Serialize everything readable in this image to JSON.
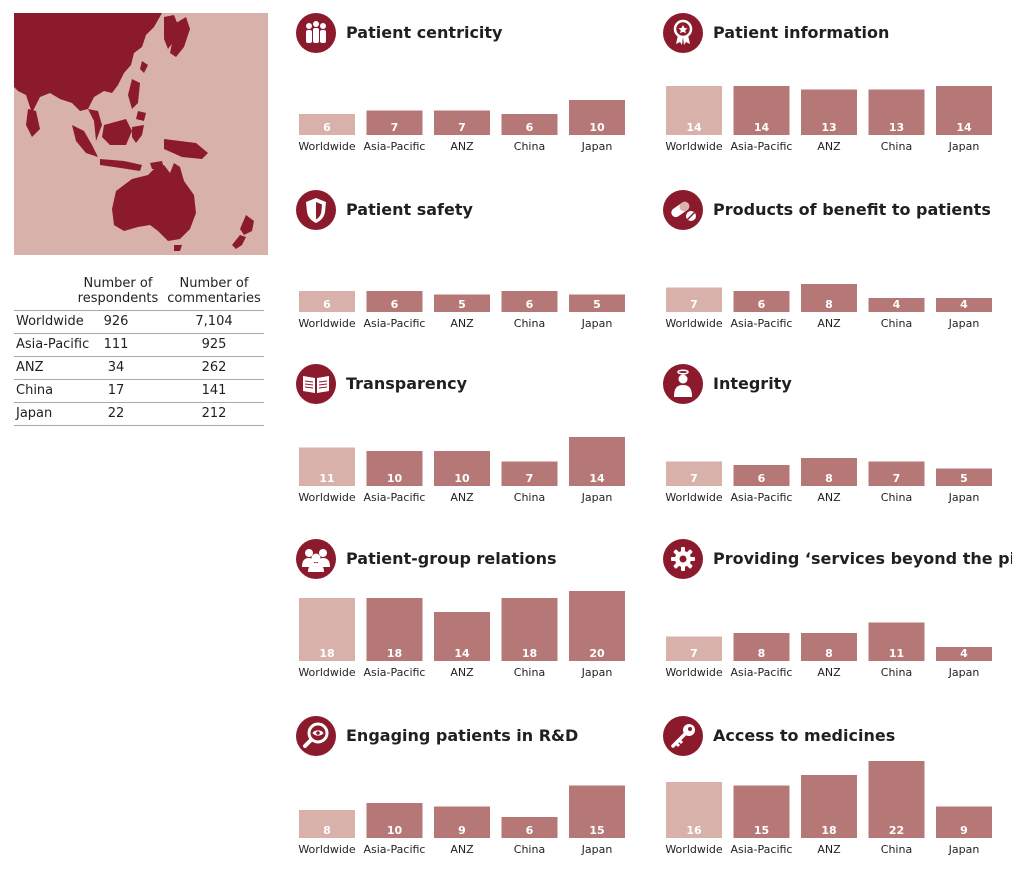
{
  "colors": {
    "worldwide": "#d8b1ab",
    "region": "#b57876",
    "accent": "#8b1a2c",
    "map_land": "#8b1a2c",
    "map_sea": "#d8b1ab"
  },
  "table": {
    "headers": [
      "Number of respondents",
      "Number of commentaries"
    ],
    "rows": [
      {
        "name": "Worldwide",
        "respondents": "926",
        "commentaries": "7,104"
      },
      {
        "name": "Asia-Pacific",
        "respondents": "111",
        "commentaries": "925"
      },
      {
        "name": "ANZ",
        "respondents": "34",
        "commentaries": "262"
      },
      {
        "name": "China",
        "respondents": "17",
        "commentaries": "141"
      },
      {
        "name": "Japan",
        "respondents": "22",
        "commentaries": "212"
      }
    ]
  },
  "chart_data": [
    {
      "type": "bar",
      "title": "Patient centricity",
      "icon": "people-group-icon",
      "categories": [
        "Worldwide",
        "Asia-Pacific",
        "ANZ",
        "China",
        "Japan"
      ],
      "values": [
        6,
        7,
        7,
        6,
        10
      ]
    },
    {
      "type": "bar",
      "title": "Patient information",
      "icon": "award-badge-icon",
      "categories": [
        "Worldwide",
        "Asia-Pacific",
        "ANZ",
        "China",
        "Japan"
      ],
      "values": [
        14,
        14,
        13,
        13,
        14
      ]
    },
    {
      "type": "bar",
      "title": "Patient safety",
      "icon": "shield-icon",
      "categories": [
        "Worldwide",
        "Asia-Pacific",
        "ANZ",
        "China",
        "Japan"
      ],
      "values": [
        6,
        6,
        5,
        6,
        5
      ]
    },
    {
      "type": "bar",
      "title": "Products of benefit to patients",
      "icon": "pills-icon",
      "categories": [
        "Worldwide",
        "Asia-Pacific",
        "ANZ",
        "China",
        "Japan"
      ],
      "values": [
        7,
        6,
        8,
        4,
        4
      ]
    },
    {
      "type": "bar",
      "title": "Transparency",
      "icon": "open-book-icon",
      "categories": [
        "Worldwide",
        "Asia-Pacific",
        "ANZ",
        "China",
        "Japan"
      ],
      "values": [
        11,
        10,
        10,
        7,
        14
      ]
    },
    {
      "type": "bar",
      "title": "Integrity",
      "icon": "person-halo-icon",
      "categories": [
        "Worldwide",
        "Asia-Pacific",
        "ANZ",
        "China",
        "Japan"
      ],
      "values": [
        7,
        6,
        8,
        7,
        5
      ]
    },
    {
      "type": "bar",
      "title": "Patient-group relations",
      "icon": "people-group-icon",
      "categories": [
        "Worldwide",
        "Asia-Pacific",
        "ANZ",
        "China",
        "Japan"
      ],
      "values": [
        18,
        18,
        14,
        18,
        20
      ]
    },
    {
      "type": "bar",
      "title": "Providing ‘services beyond the pill’",
      "icon": "gear-icon",
      "categories": [
        "Worldwide",
        "Asia-Pacific",
        "ANZ",
        "China",
        "Japan"
      ],
      "values": [
        7,
        8,
        8,
        11,
        4
      ]
    },
    {
      "type": "bar",
      "title": "Engaging patients in R&D",
      "icon": "magnifier-eye-icon",
      "categories": [
        "Worldwide",
        "Asia-Pacific",
        "ANZ",
        "China",
        "Japan"
      ],
      "values": [
        8,
        10,
        9,
        6,
        15
      ]
    },
    {
      "type": "bar",
      "title": "Access to medicines",
      "icon": "key-icon",
      "categories": [
        "Worldwide",
        "Asia-Pacific",
        "ANZ",
        "China",
        "Japan"
      ],
      "values": [
        16,
        15,
        18,
        22,
        9
      ]
    }
  ]
}
